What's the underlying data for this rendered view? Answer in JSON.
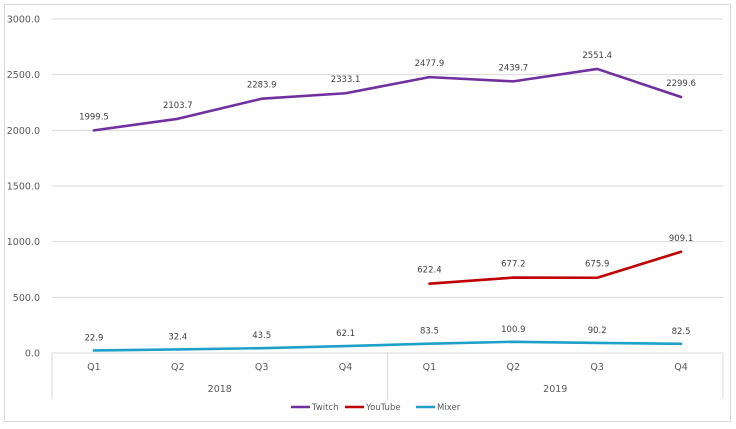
{
  "chart_data": {
    "type": "line",
    "title": "",
    "xlabel": "",
    "ylabel": "",
    "ylim": [
      0,
      3000
    ],
    "yticks": [
      "0.0",
      "500.0",
      "1000.0",
      "1500.0",
      "2000.0",
      "2500.0",
      "3000.0"
    ],
    "ytick_values": [
      0,
      500,
      1000,
      1500,
      2000,
      2500,
      3000
    ],
    "grid": true,
    "legend_position": "bottom",
    "categories": [
      "Q1",
      "Q2",
      "Q3",
      "Q4",
      "Q1",
      "Q2",
      "Q3",
      "Q4"
    ],
    "groups": [
      {
        "label": "2018",
        "span": 4
      },
      {
        "label": "2019",
        "span": 4
      }
    ],
    "series": [
      {
        "name": "Twitch",
        "color": "#7030a0",
        "values": [
          1999.5,
          2103.7,
          2283.9,
          2333.1,
          2477.9,
          2439.7,
          2551.4,
          2299.6
        ],
        "labels": [
          "1999.5",
          "2103.7",
          "2283.9",
          "2333.1",
          "2477.9",
          "2439.7",
          "2551.4",
          "2299.6"
        ]
      },
      {
        "name": "YouTube",
        "color": "#c00000",
        "values": [
          null,
          null,
          null,
          null,
          622.4,
          677.2,
          675.9,
          909.1
        ],
        "labels": [
          "",
          "",
          "",
          "",
          "622.4",
          "677.2",
          "675.9",
          "909.1"
        ]
      },
      {
        "name": "Mixer",
        "color": "#1fa0c8",
        "values": [
          22.9,
          32.4,
          43.5,
          62.1,
          83.5,
          100.9,
          90.2,
          82.5
        ],
        "labels": [
          "22.9",
          "32.4",
          "43.5",
          "62.1",
          "83.5",
          "100.9",
          "90.2",
          "82.5"
        ]
      }
    ]
  }
}
